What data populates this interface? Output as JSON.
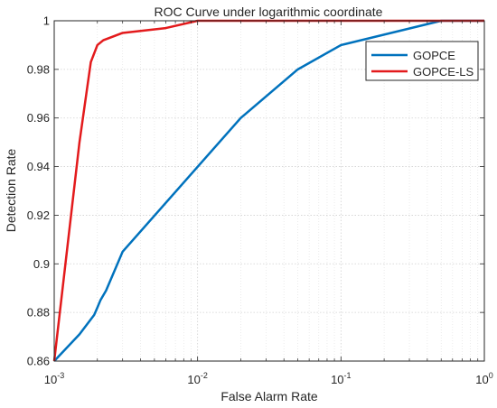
{
  "chart_data": {
    "type": "line",
    "title": "ROC Curve under logarithmic coordinate",
    "xlabel": "False Alarm Rate",
    "ylabel": "Detection Rate",
    "xscale": "log",
    "xlim": [
      0.001,
      1
    ],
    "ylim": [
      0.86,
      1.0
    ],
    "xticks": [
      {
        "base": "10",
        "exp": "-3",
        "value": 0.001
      },
      {
        "base": "10",
        "exp": "-2",
        "value": 0.01
      },
      {
        "base": "10",
        "exp": "-1",
        "value": 0.1
      },
      {
        "base": "10",
        "exp": "0",
        "value": 1
      }
    ],
    "yticks": [
      {
        "label": "0.86",
        "value": 0.86
      },
      {
        "label": "0.88",
        "value": 0.88
      },
      {
        "label": "0.9",
        "value": 0.9
      },
      {
        "label": "0.92",
        "value": 0.92
      },
      {
        "label": "0.94",
        "value": 0.94
      },
      {
        "label": "0.96",
        "value": 0.96
      },
      {
        "label": "0.98",
        "value": 0.98
      },
      {
        "label": "1",
        "value": 1.0
      }
    ],
    "grid": true,
    "minor_grid": true,
    "legend_position": "top-right",
    "series": [
      {
        "name": "GOPCE",
        "color": "#0072BD",
        "x": [
          0.001,
          0.0015,
          0.0019,
          0.002,
          0.0021,
          0.0023,
          0.003,
          0.02,
          0.05,
          0.1,
          0.5,
          1.0
        ],
        "y": [
          0.86,
          0.871,
          0.879,
          0.882,
          0.885,
          0.889,
          0.905,
          0.96,
          0.98,
          0.99,
          1.0,
          1.0
        ]
      },
      {
        "name": "GOPCE-LS",
        "color": "#E31A1C",
        "x": [
          0.001,
          0.0015,
          0.0018,
          0.002,
          0.0022,
          0.003,
          0.006,
          0.01,
          0.02,
          1.0
        ],
        "y": [
          0.86,
          0.95,
          0.983,
          0.99,
          0.992,
          0.995,
          0.997,
          1.0,
          1.0,
          1.0
        ]
      }
    ]
  }
}
